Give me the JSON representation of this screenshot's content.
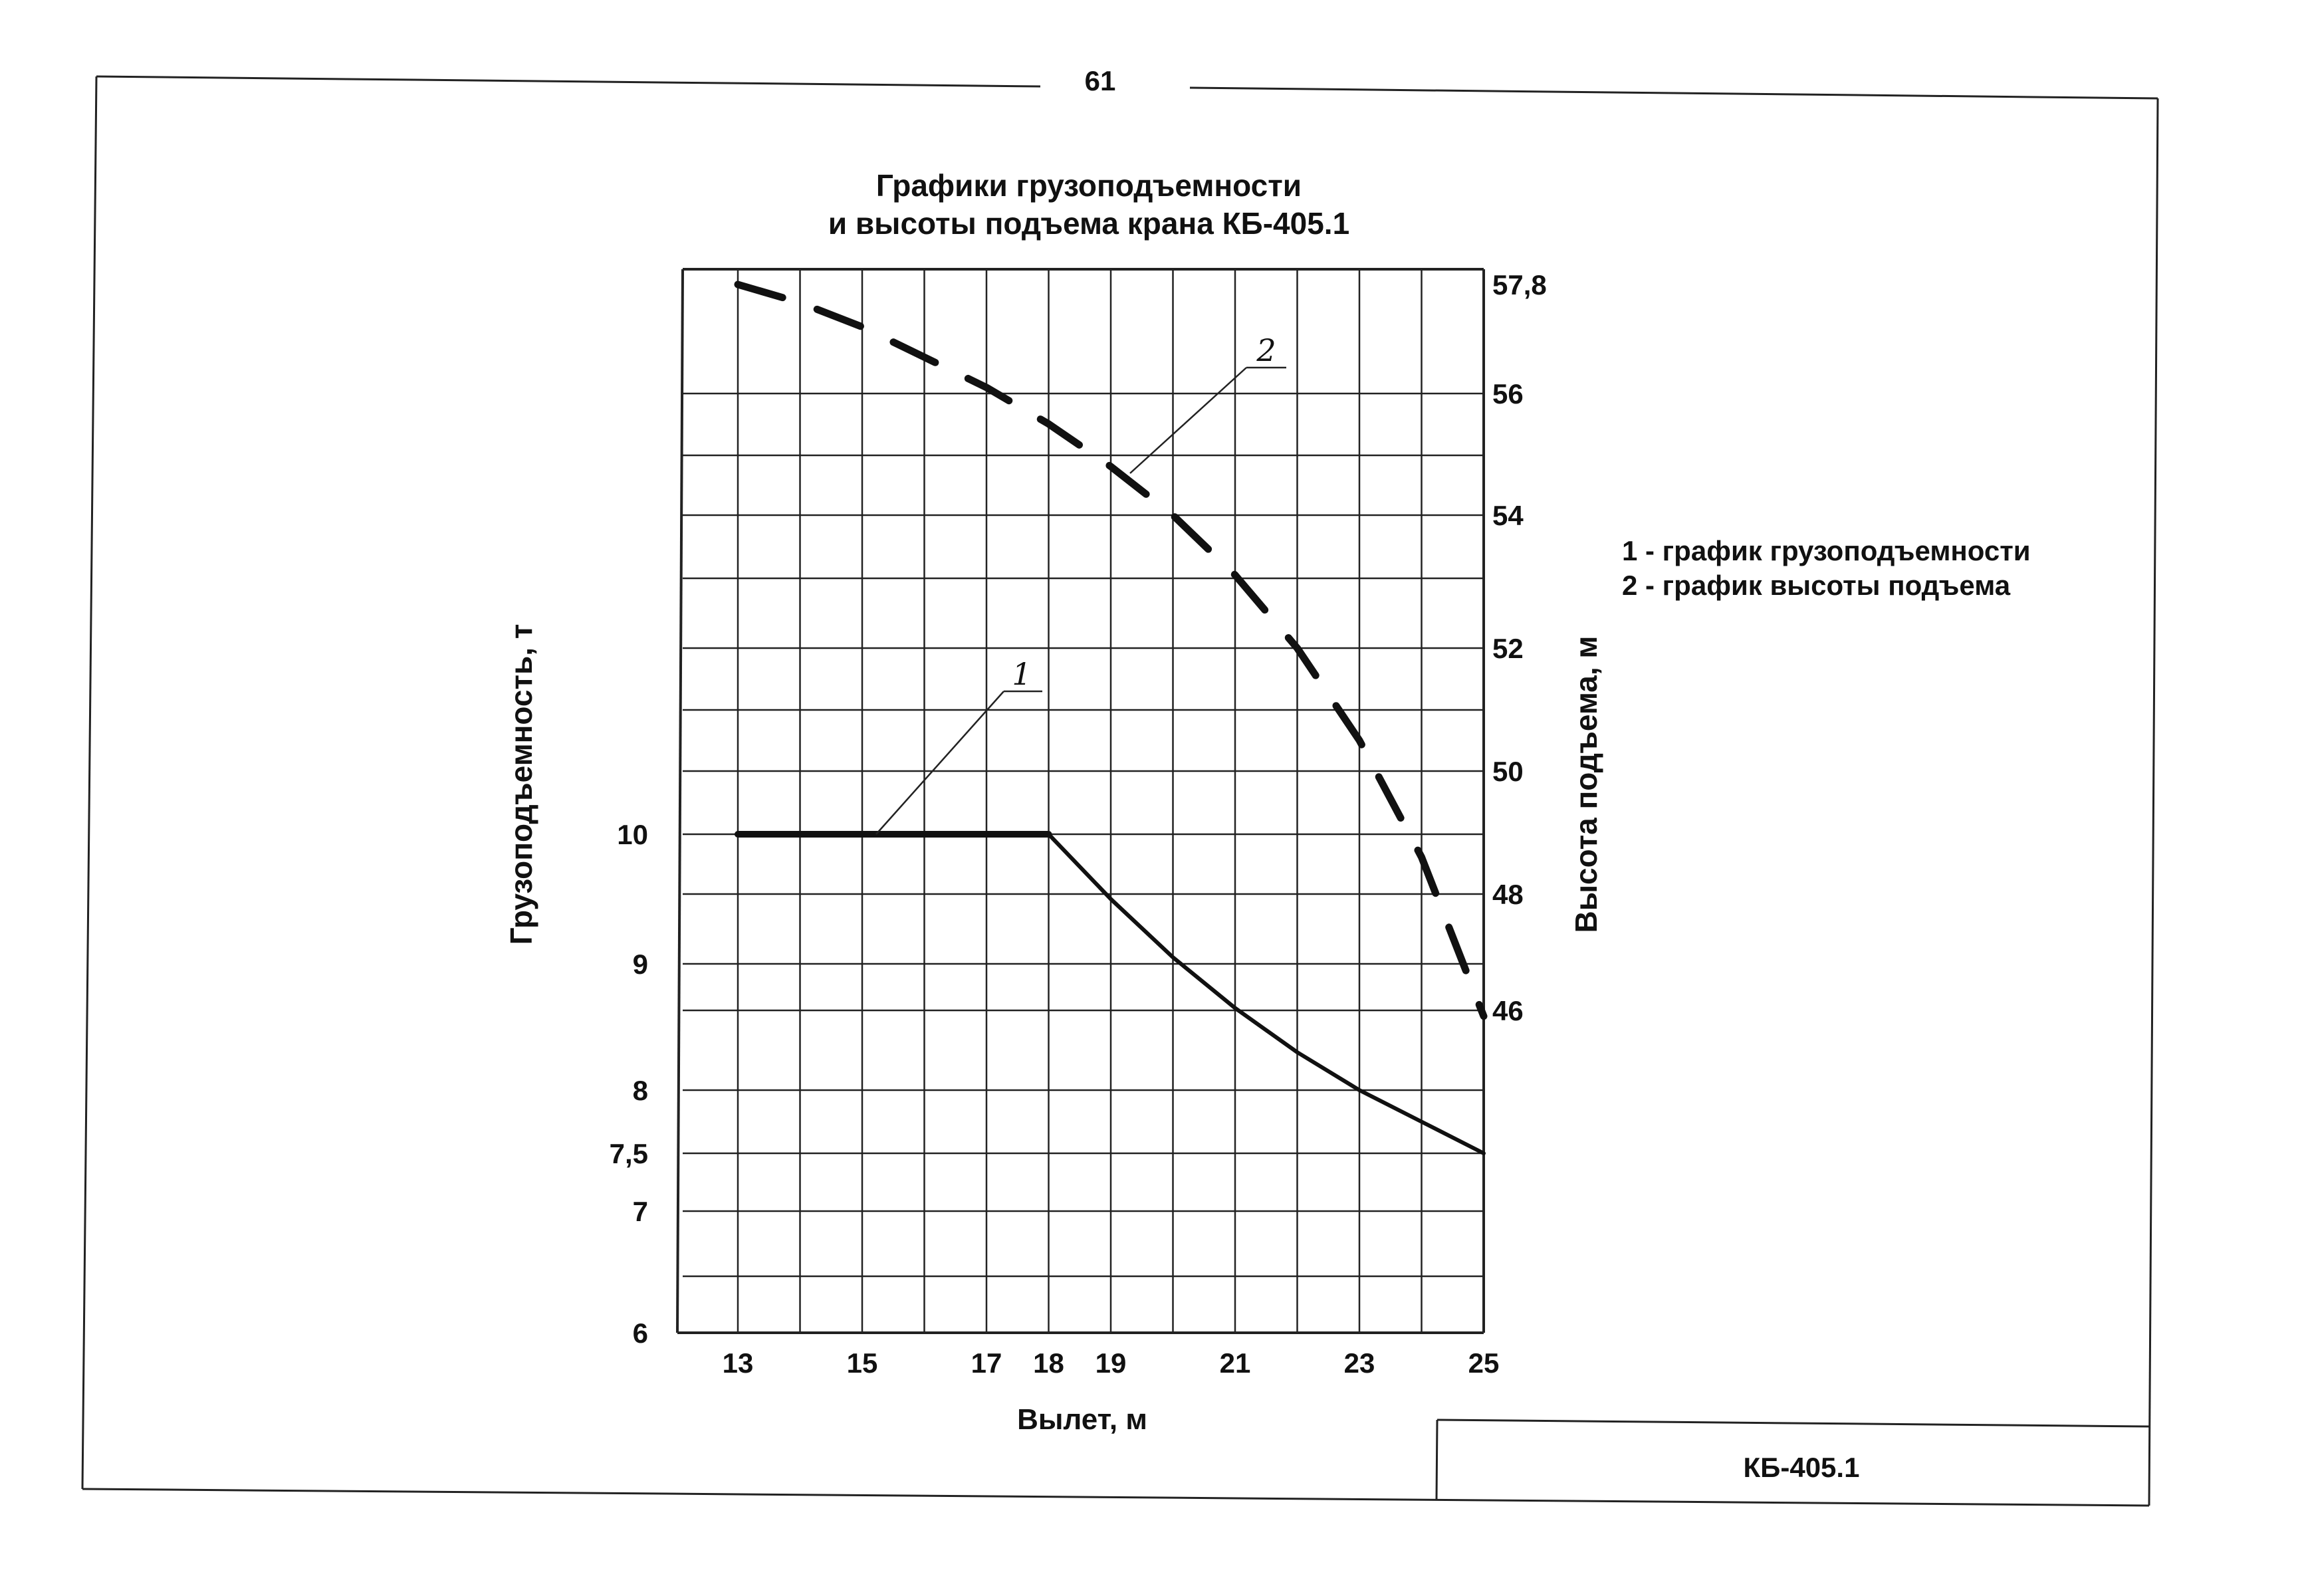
{
  "page_number": "61",
  "stamp": "КБ-405.1",
  "legend": [
    "1 - график грузоподъемности",
    "2 - график высоты подъема"
  ],
  "chart_data": {
    "type": "line",
    "title": [
      "Графики грузоподъемности",
      "и высоты подъема крана КБ-405.1"
    ],
    "xlabel": "Вылет, м",
    "ylabel_left": "Грузоподъемность, т",
    "ylabel_right": "Высота подъема, м",
    "xlim": [
      12,
      25
    ],
    "x_ticks": [
      13,
      15,
      17,
      18,
      19,
      21,
      23,
      25
    ],
    "x_tick_labels": [
      "13",
      "15",
      "17",
      "18",
      "19",
      "21",
      "23",
      "25"
    ],
    "grid": true,
    "y_left_ticks": [
      {
        "value": 6,
        "label": "6"
      },
      {
        "value": 7,
        "label": "7"
      },
      {
        "value": 7.5,
        "label": "7,5"
      },
      {
        "value": 8,
        "label": "8"
      },
      {
        "value": 9,
        "label": "9"
      },
      {
        "value": 10,
        "label": "10"
      }
    ],
    "y_right_ticks": [
      {
        "value": 46,
        "label": "46"
      },
      {
        "value": 48,
        "label": "48"
      },
      {
        "value": 50,
        "label": "50"
      },
      {
        "value": 52,
        "label": "52"
      },
      {
        "value": 54,
        "label": "54"
      },
      {
        "value": 56,
        "label": "56"
      },
      {
        "value": 57.8,
        "label": "57,8"
      }
    ],
    "series": [
      {
        "name": "1",
        "axis": "left",
        "style": "solid",
        "x": [
          13,
          18,
          19,
          20,
          21,
          22,
          23,
          24,
          25
        ],
        "y": [
          10,
          10,
          9.5,
          9.05,
          8.65,
          8.3,
          8.0,
          7.75,
          7.5
        ]
      },
      {
        "name": "2",
        "axis": "right",
        "style": "dashed",
        "x": [
          13,
          14,
          15,
          16,
          17,
          18,
          19,
          20,
          21,
          22,
          23,
          24,
          25
        ],
        "y": [
          57.8,
          57.5,
          57.1,
          56.6,
          56.1,
          55.5,
          54.8,
          54.0,
          53.1,
          52.0,
          50.5,
          48.6,
          45.9
        ]
      }
    ]
  }
}
